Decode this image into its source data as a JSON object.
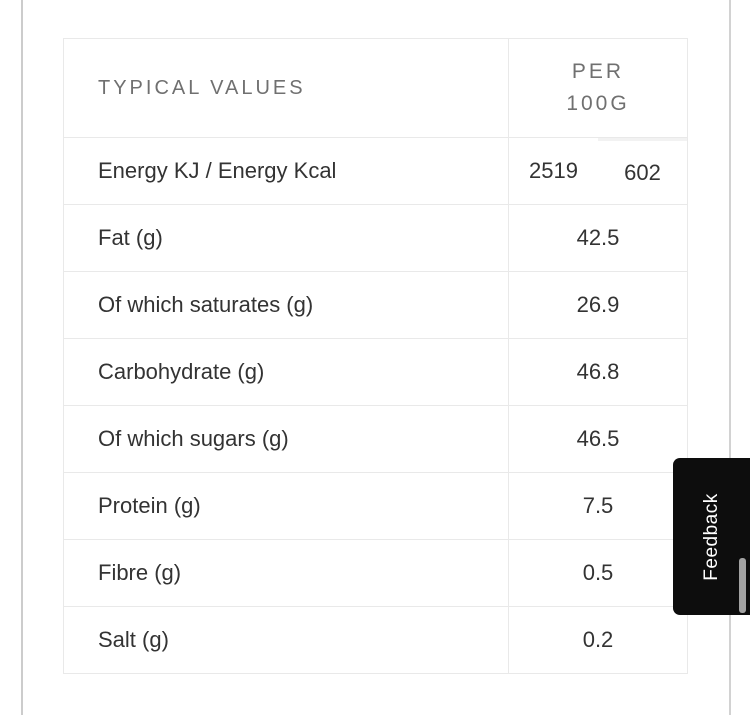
{
  "table": {
    "header": {
      "label_column": "TYPICAL VALUES",
      "value_column_lines": [
        "PER",
        "100G"
      ]
    },
    "energy_row": {
      "label": "Energy KJ / Energy Kcal",
      "value_kj": "2519",
      "value_kcal": "602"
    },
    "rows": [
      {
        "label": "Fat (g)",
        "value": "42.5"
      },
      {
        "label": "Of which saturates (g)",
        "value": "26.9"
      },
      {
        "label": "Carbohydrate (g)",
        "value": "46.8"
      },
      {
        "label": "Of which sugars (g)",
        "value": "46.5"
      },
      {
        "label": "Protein (g)",
        "value": "7.5"
      },
      {
        "label": "Fibre (g)",
        "value": "0.5"
      },
      {
        "label": "Salt (g)",
        "value": "0.2"
      }
    ]
  },
  "feedback": {
    "label": "Feedback"
  },
  "colors": {
    "table_border": "#e9e9e9",
    "frame_line": "#cccccc",
    "header_text": "#707070",
    "body_text": "#333333",
    "feedback_background": "#0d0d0d",
    "feedback_text": "#ffffff",
    "scrollbar_thumb": "#a2a2a2"
  }
}
